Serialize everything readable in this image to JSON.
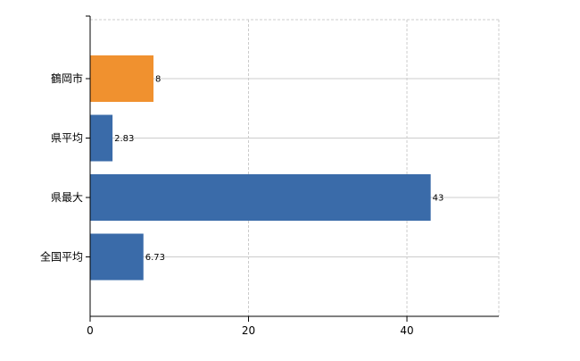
{
  "chart_data": {
    "type": "bar",
    "orientation": "horizontal",
    "categories": [
      "鶴岡市",
      "県平均",
      "県最大",
      "全国平均"
    ],
    "values": [
      8,
      2.83,
      43,
      6.73
    ],
    "value_labels": [
      "8",
      "2.83",
      "43",
      "6.73"
    ],
    "highlight_category": "鶴岡市",
    "colors": {
      "highlight": "#f0912f",
      "default": "#3a6ba9"
    },
    "title": "",
    "xlabel": "",
    "ylabel": "",
    "xlim": [
      0,
      51.6
    ],
    "x_ticks": [
      0,
      20,
      40
    ],
    "x_tick_labels": [
      "0",
      "20",
      "40"
    ],
    "grid": true,
    "legend": "none"
  }
}
